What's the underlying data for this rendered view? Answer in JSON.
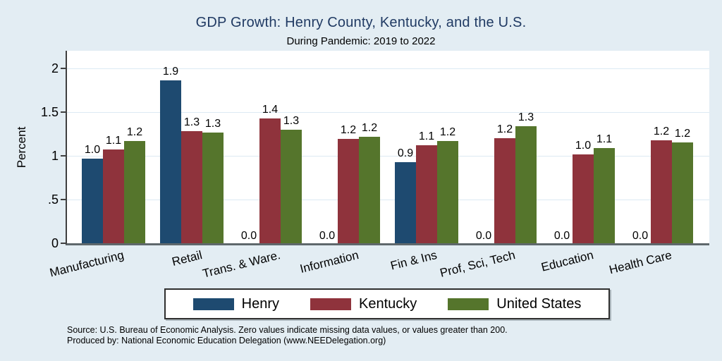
{
  "title": "GDP Growth: Henry County, Kentucky, and the U.S.",
  "subtitle": "During Pandemic: 2019 to 2022",
  "footer": {
    "line1": "Source: U.S. Bureau of Economic Analysis. Zero values indicate missing data values, or values greater than 200.",
    "line2": "Produced by: National Economic Education Delegation (www.NEEDelegation.org)"
  },
  "colors": {
    "background": "#e3edf3",
    "plot_background": "#ffffff",
    "gridline": "#dceaf3",
    "title_text": "#203a63",
    "henry": "#1e4a70",
    "kentucky": "#8f333c",
    "united_states": "#55752c"
  },
  "chart_data": {
    "type": "bar",
    "title": "GDP Growth: Henry County, Kentucky, and the U.S.",
    "subtitle": "During Pandemic: 2019 to 2022",
    "ylabel": "Percent",
    "xlabel": "",
    "ylim": [
      0,
      2.2
    ],
    "grid": true,
    "legend_position": "bottom",
    "yticks": [
      {
        "value": 0,
        "label": "0"
      },
      {
        "value": 0.5,
        "label": ".5"
      },
      {
        "value": 1,
        "label": "1"
      },
      {
        "value": 1.5,
        "label": "1.5"
      },
      {
        "value": 2,
        "label": "2"
      }
    ],
    "categories": [
      "Manufacturing",
      "Retail",
      "Trans. & Ware.",
      "Information",
      "Fin & Ins",
      "Prof, Sci, Tech",
      "Education",
      "Health Care"
    ],
    "series": [
      {
        "name": "Henry",
        "color": "#1e4a70",
        "values": [
          0.97,
          1.86,
          0,
          0,
          0.93,
          0,
          0,
          0
        ],
        "labels": [
          "1.0",
          "1.9",
          "0.0",
          "0.0",
          "0.9",
          "0.0",
          "0.0",
          "0.0"
        ]
      },
      {
        "name": "Kentucky",
        "color": "#8f333c",
        "values": [
          1.07,
          1.28,
          1.43,
          1.19,
          1.12,
          1.2,
          1.02,
          1.18
        ],
        "labels": [
          "1.1",
          "1.3",
          "1.4",
          "1.2",
          "1.1",
          "1.2",
          "1.0",
          "1.2"
        ]
      },
      {
        "name": "United States",
        "color": "#55752c",
        "values": [
          1.17,
          1.27,
          1.3,
          1.22,
          1.17,
          1.34,
          1.09,
          1.15
        ],
        "labels": [
          "1.2",
          "1.3",
          "1.3",
          "1.2",
          "1.2",
          "1.3",
          "1.1",
          "1.2"
        ]
      }
    ]
  }
}
